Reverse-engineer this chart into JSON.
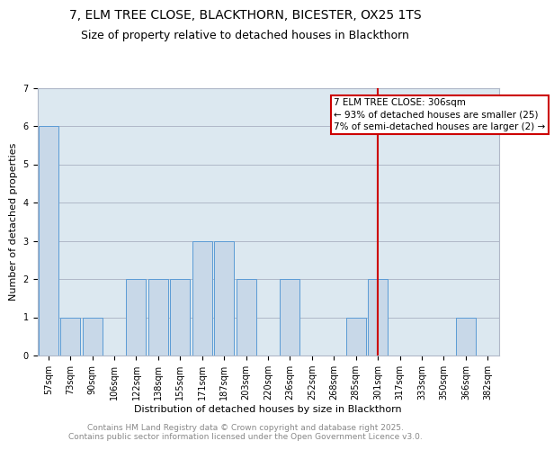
{
  "title_line1": "7, ELM TREE CLOSE, BLACKTHORN, BICESTER, OX25 1TS",
  "title_line2": "Size of property relative to detached houses in Blackthorn",
  "xlabel": "Distribution of detached houses by size in Blackthorn",
  "ylabel": "Number of detached properties",
  "categories": [
    "57sqm",
    "73sqm",
    "90sqm",
    "106sqm",
    "122sqm",
    "138sqm",
    "155sqm",
    "171sqm",
    "187sqm",
    "203sqm",
    "220sqm",
    "236sqm",
    "252sqm",
    "268sqm",
    "285sqm",
    "301sqm",
    "317sqm",
    "333sqm",
    "350sqm",
    "366sqm",
    "382sqm"
  ],
  "values": [
    6,
    1,
    1,
    0,
    2,
    2,
    2,
    3,
    3,
    2,
    0,
    2,
    0,
    0,
    1,
    2,
    0,
    0,
    0,
    1,
    0
  ],
  "bar_color": "#c8d8e8",
  "bar_edge_color": "#5b9bd5",
  "grid_color": "#b0b8c8",
  "bg_color": "#dce8f0",
  "vline_idx": 15,
  "vline_color": "#cc0000",
  "annotation_text": "7 ELM TREE CLOSE: 306sqm\n← 93% of detached houses are smaller (25)\n7% of semi-detached houses are larger (2) →",
  "annotation_box_edge": "#cc0000",
  "ylim": [
    0,
    7
  ],
  "yticks": [
    0,
    1,
    2,
    3,
    4,
    5,
    6,
    7
  ],
  "footer_text": "Contains HM Land Registry data © Crown copyright and database right 2025.\nContains public sector information licensed under the Open Government Licence v3.0.",
  "title_fontsize": 10,
  "subtitle_fontsize": 9,
  "axis_label_fontsize": 8,
  "tick_fontsize": 7,
  "annotation_fontsize": 7.5,
  "footer_fontsize": 6.5
}
